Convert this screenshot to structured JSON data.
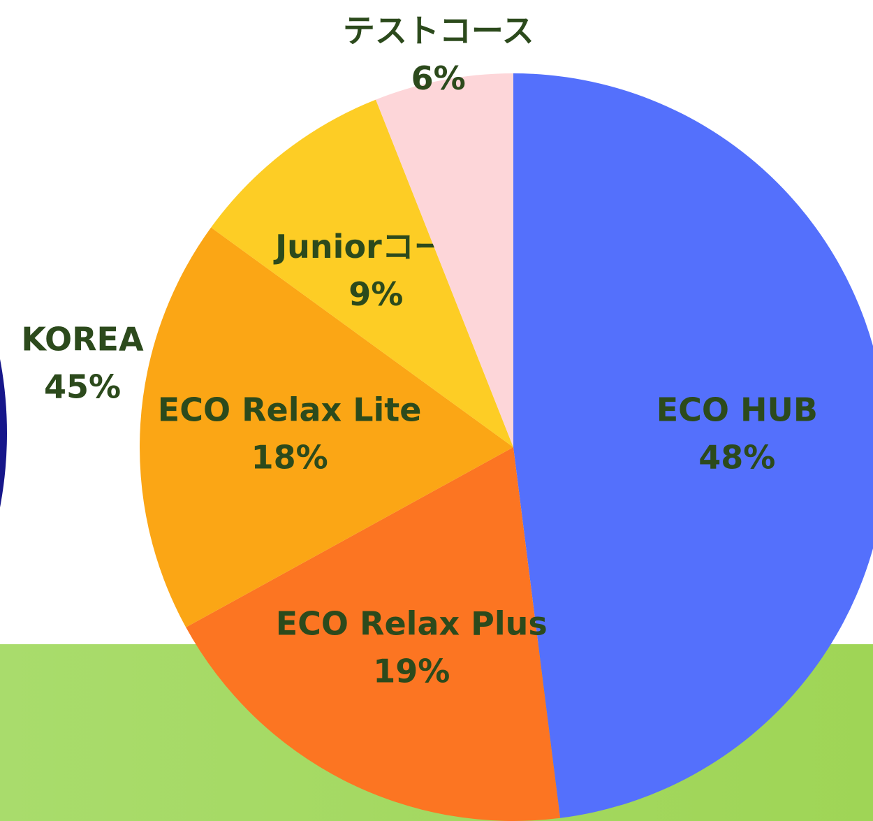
{
  "chart_data": [
    {
      "type": "pie",
      "categories": [
        "ECO HUB",
        "ECO Relax Plus",
        "ECO Relax Lite",
        "Juniorコース",
        "テストコース"
      ],
      "values": [
        48,
        19,
        18,
        9,
        6
      ],
      "value_labels": [
        "48%",
        "19%",
        "18%",
        "9%",
        "6%"
      ],
      "colors": [
        "#5470fc",
        "#fc7522",
        "#fba615",
        "#fdcd25",
        "#fdd6d9"
      ]
    },
    {
      "type": "pie",
      "categories": [
        "KOREA"
      ],
      "values": [
        45
      ],
      "value_labels": [
        "45%"
      ],
      "colors": [
        "#16168a"
      ]
    }
  ]
}
